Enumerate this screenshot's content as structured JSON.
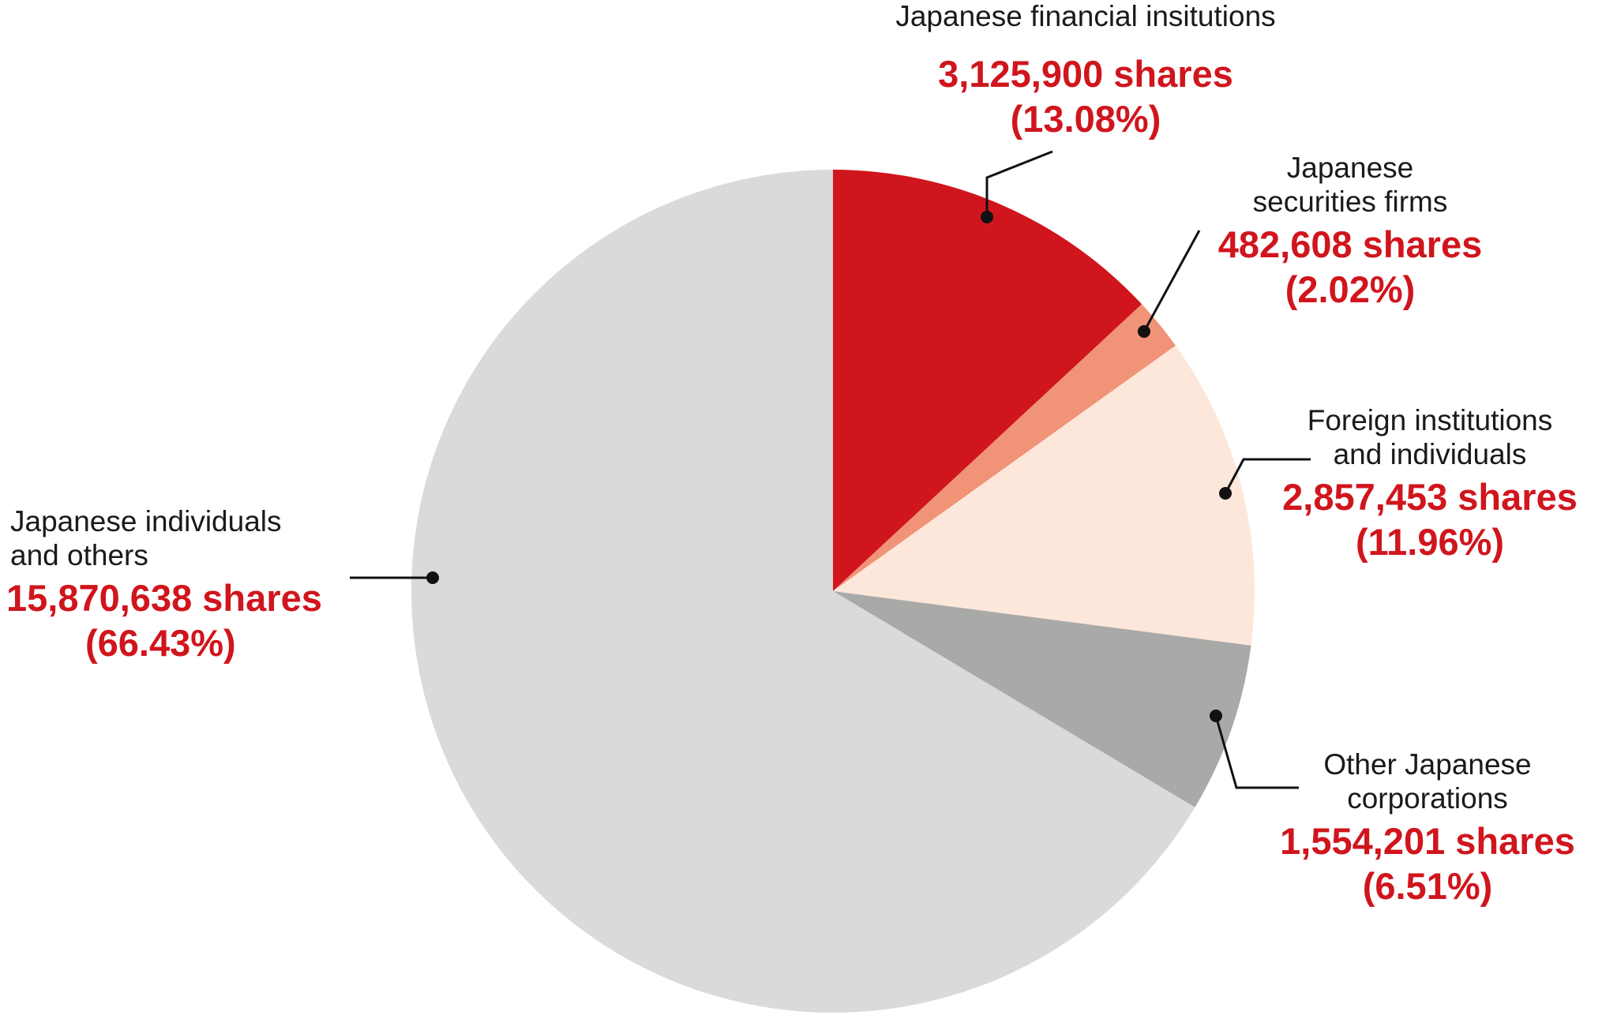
{
  "chart_data": {
    "type": "pie",
    "start_angle_deg": 0,
    "direction": "clockwise",
    "slices": [
      {
        "category": "Japanese financial insitutions",
        "shares": 3125900,
        "shares_label": "3,125,900 shares",
        "percent": 13.08,
        "percent_label": "(13.08%)",
        "color": "#d0151d"
      },
      {
        "category": "Japanese\nsecurities firms",
        "shares": 482608,
        "shares_label": "482,608 shares",
        "percent": 2.02,
        "percent_label": "(2.02%)",
        "color": "#f09377"
      },
      {
        "category": "Foreign institutions\nand individuals",
        "shares": 2857453,
        "shares_label": "2,857,453 shares",
        "percent": 11.96,
        "percent_label": "(11.96%)",
        "color": "#fde7da"
      },
      {
        "category": "Other Japanese\ncorporations",
        "shares": 1554201,
        "shares_label": "1,554,201 shares",
        "percent": 6.51,
        "percent_label": "(6.51%)",
        "color": "#a9a9a8"
      },
      {
        "category": "Japanese individuals\nand others",
        "shares": 15870638,
        "shares_label": "15,870,638 shares",
        "percent": 66.43,
        "percent_label": "(66.43%)",
        "color": "#dadada"
      }
    ]
  }
}
